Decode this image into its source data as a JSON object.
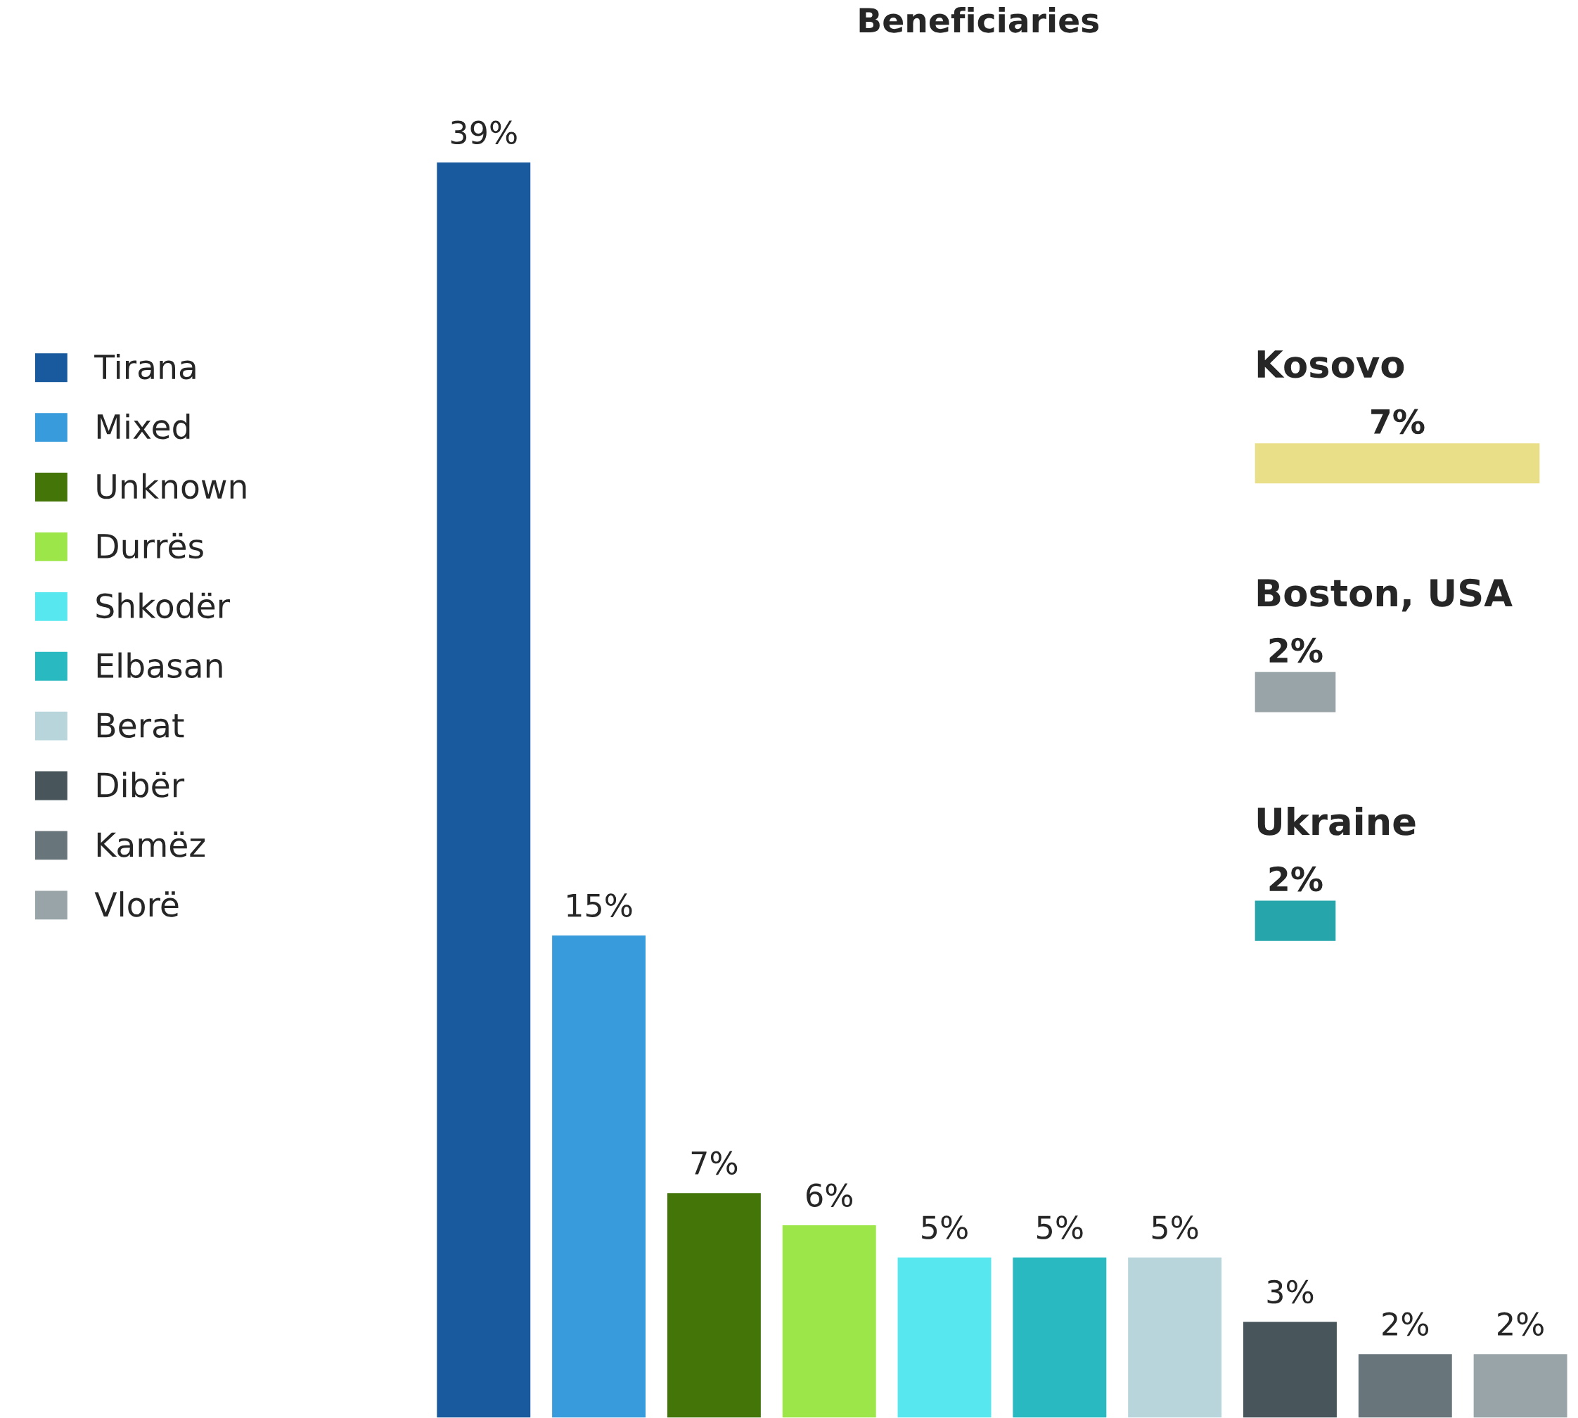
{
  "chart_data": [
    {
      "type": "bar",
      "title": "Beneficiaries",
      "categories": [
        null,
        null,
        null,
        null,
        null,
        null,
        null,
        null,
        null,
        null
      ],
      "series": [
        {
          "name": "Tirana",
          "color": "#185a9d",
          "values": [
            39,
            null,
            null,
            null,
            null,
            null,
            null,
            null,
            null,
            null
          ],
          "value_labels": [
            "39%",
            null,
            null,
            null,
            null,
            null,
            null,
            null,
            null,
            null
          ]
        },
        {
          "name": "Mixed",
          "color": "#389bdb",
          "values": [
            null,
            15,
            null,
            null,
            null,
            null,
            null,
            null,
            null,
            null
          ],
          "value_labels": [
            null,
            "15%",
            null,
            null,
            null,
            null,
            null,
            null,
            null,
            null
          ]
        },
        {
          "name": "Unknown",
          "color": "#437508",
          "values": [
            null,
            null,
            7,
            null,
            null,
            null,
            null,
            null,
            null,
            null
          ],
          "value_labels": [
            null,
            null,
            "7%",
            null,
            null,
            null,
            null,
            null,
            null,
            null
          ]
        },
        {
          "name": "Durrës",
          "color": "#9de64a",
          "values": [
            null,
            null,
            null,
            6,
            null,
            null,
            null,
            null,
            null,
            null
          ],
          "value_labels": [
            null,
            null,
            null,
            "6%",
            null,
            null,
            null,
            null,
            null,
            null
          ]
        },
        {
          "name": "Shkodër",
          "color": "#56e8ee",
          "values": [
            null,
            null,
            null,
            null,
            5,
            null,
            null,
            null,
            null,
            null
          ],
          "value_labels": [
            null,
            null,
            null,
            null,
            "5%",
            null,
            null,
            null,
            null,
            null
          ]
        },
        {
          "name": "Elbasan",
          "color": "#28b9c1",
          "values": [
            null,
            null,
            null,
            null,
            null,
            5,
            null,
            null,
            null,
            null
          ],
          "value_labels": [
            null,
            null,
            null,
            null,
            null,
            "5%",
            null,
            null,
            null,
            null
          ]
        },
        {
          "name": "Berat",
          "color": "#b7d5da",
          "values": [
            null,
            null,
            null,
            null,
            null,
            null,
            5,
            null,
            null,
            null
          ],
          "value_labels": [
            null,
            null,
            null,
            null,
            null,
            null,
            "5%",
            null,
            null,
            null
          ]
        },
        {
          "name": "Dibër",
          "color": "#48565c",
          "values": [
            null,
            null,
            null,
            null,
            null,
            null,
            null,
            3,
            null,
            null
          ],
          "value_labels": [
            null,
            null,
            null,
            null,
            null,
            null,
            null,
            "3%",
            null,
            null
          ]
        },
        {
          "name": "Kamëz",
          "color": "#68757a",
          "values": [
            null,
            null,
            null,
            null,
            null,
            null,
            null,
            null,
            2,
            null
          ],
          "value_labels": [
            null,
            null,
            null,
            null,
            null,
            null,
            null,
            null,
            "2%",
            null
          ]
        },
        {
          "name": "Vlorë",
          "color": "#98a4a8",
          "values": [
            null,
            null,
            null,
            null,
            null,
            null,
            null,
            null,
            null,
            2
          ],
          "value_labels": [
            null,
            null,
            null,
            null,
            null,
            null,
            null,
            null,
            null,
            "2%"
          ]
        }
      ],
      "stacked": true,
      "legend": "left"
    },
    {
      "type": "bar",
      "orientation": "horizontal",
      "categories": [
        "Kosovo",
        "Boston, USA",
        "Ukraine"
      ],
      "values": [
        7,
        2,
        2
      ],
      "colors": [
        "#e8df88",
        "#98a4a8",
        "#26a6aa"
      ],
      "value_labels": [
        "7%",
        "2%",
        "2%"
      ]
    }
  ]
}
